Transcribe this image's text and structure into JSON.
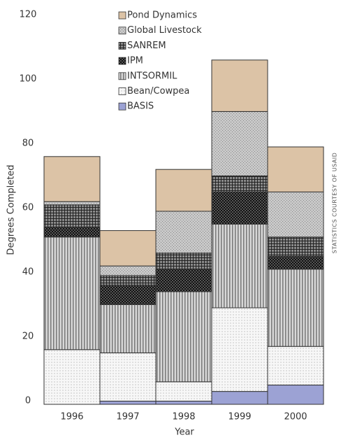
{
  "chart_data": {
    "type": "stacked-bar",
    "categories": [
      "1996",
      "1997",
      "1998",
      "1999",
      "2000"
    ],
    "series": [
      {
        "name": "BASIS",
        "color": "#9ca2d4",
        "values": [
          0,
          1,
          1,
          4,
          6
        ]
      },
      {
        "name": "Bean/Cowpea",
        "color": "#f7f7f7",
        "values": [
          17,
          15,
          6,
          26,
          12
        ]
      },
      {
        "name": "INTSORMIL",
        "color": "#d8d8d8",
        "values": [
          35,
          15,
          28,
          26,
          24
        ]
      },
      {
        "name": "IPM",
        "color": "#555555",
        "values": [
          3,
          6,
          7,
          10,
          4
        ]
      },
      {
        "name": "SANREM",
        "color": "#8a8a8a",
        "values": [
          7,
          3,
          5,
          5,
          6
        ]
      },
      {
        "name": "Global Livestock",
        "color": "#c8c8c8",
        "values": [
          1,
          3,
          13,
          20,
          14
        ]
      },
      {
        "name": "Pond Dynamics",
        "color": "#dcc3a6",
        "values": [
          14,
          11,
          13,
          16,
          14
        ]
      }
    ],
    "ylim": [
      0,
      120
    ],
    "yticks": [
      0,
      20,
      40,
      60,
      80,
      100,
      120
    ],
    "y_label": "Degrees Completed",
    "x_label": "Year",
    "annotation": "STATISTICS COURTESY OF USAID"
  }
}
